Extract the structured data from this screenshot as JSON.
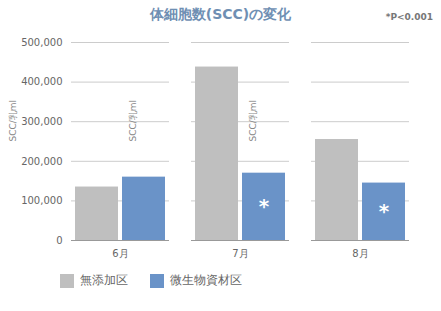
{
  "chart_data": {
    "type": "bar",
    "title": "体細胞数(SCC)の変化",
    "y_label": "SCC/乳ml",
    "annotations": [
      {
        "text": "*P<0.001"
      },
      {
        "text": "*",
        "category": "7月",
        "series": "微生物資材区"
      },
      {
        "text": "*",
        "category": "8月",
        "series": "微生物資材区"
      }
    ],
    "categories": [
      "6月",
      "7月",
      "8月"
    ],
    "series": [
      {
        "name": "無添加区",
        "color": "#bfbfbf",
        "values": [
          135000,
          438000,
          255000
        ]
      },
      {
        "name": "微生物資材区",
        "color": "#6a93c8",
        "values": [
          160000,
          170000,
          145000
        ]
      }
    ],
    "ylim": [
      0,
      500000
    ],
    "yticks": [
      0,
      {
        "value": 100000,
        "label": "100,000"
      },
      {
        "value": 200000,
        "label": "200,000"
      },
      {
        "value": 300000,
        "label": "300,000"
      },
      {
        "value": 400000,
        "label": "400,000"
      },
      {
        "value": 500000,
        "label": "500,000"
      }
    ],
    "grid": true,
    "legend": "bottom"
  }
}
